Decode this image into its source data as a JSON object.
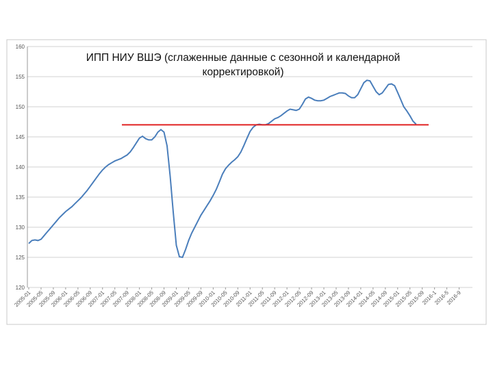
{
  "chart_data": {
    "type": "line",
    "title": "ИПП НИУ ВШЭ (сглаженные данные с сезонной и календарной корректировкой)",
    "categories": [
      "2005-01",
      null,
      null,
      null,
      "2005-05",
      null,
      null,
      null,
      "2005-09",
      null,
      null,
      null,
      "2006-01",
      null,
      null,
      null,
      "2006-05",
      null,
      null,
      null,
      "2006-09",
      null,
      null,
      null,
      "2007-01",
      null,
      null,
      null,
      "2007-05",
      null,
      null,
      null,
      "2007-09",
      null,
      null,
      null,
      "2008-01",
      null,
      null,
      null,
      "2008-05",
      null,
      null,
      null,
      "2008-09",
      null,
      null,
      null,
      "2009-01",
      null,
      null,
      null,
      "2009-05",
      null,
      null,
      null,
      "2009-09",
      null,
      null,
      null,
      "2010-01",
      null,
      null,
      null,
      "2010-05",
      null,
      null,
      null,
      "2010-09",
      null,
      null,
      null,
      "2011-01",
      null,
      null,
      null,
      "2011-05",
      null,
      null,
      null,
      "2011-09",
      null,
      null,
      null,
      "2012-01",
      null,
      null,
      null,
      "2012-05",
      null,
      null,
      null,
      "2012-09",
      null,
      null,
      null,
      "2013-01",
      null,
      null,
      null,
      "2013-05",
      null,
      null,
      null,
      "2013-09",
      null,
      null,
      null,
      "2014-01",
      null,
      null,
      null,
      "2014-05",
      null,
      null,
      null,
      "2014-09",
      null,
      null,
      null,
      "2015-01",
      null,
      null,
      null,
      "2015-05",
      null,
      null,
      null,
      "2015-09",
      null,
      null,
      null,
      "2016-1",
      null,
      null,
      null,
      "2016-5",
      null,
      null,
      null,
      "2016-9",
      null,
      null,
      null
    ],
    "series": [
      {
        "name": "ИПП",
        "color": "#4a7ebb",
        "values": [
          127.3,
          127.8,
          127.9,
          127.8,
          128.0,
          128.6,
          129.2,
          129.8,
          130.4,
          131.0,
          131.6,
          132.1,
          132.6,
          133.0,
          133.4,
          133.9,
          134.4,
          134.9,
          135.5,
          136.1,
          136.8,
          137.5,
          138.2,
          138.9,
          139.5,
          140.0,
          140.4,
          140.7,
          141.0,
          141.2,
          141.4,
          141.7,
          142.0,
          142.5,
          143.2,
          144.0,
          144.8,
          145.1,
          144.7,
          144.5,
          144.5,
          145.0,
          145.8,
          146.2,
          145.8,
          143.5,
          138.5,
          132.5,
          127.0,
          125.1,
          125.0,
          126.3,
          127.8,
          129.0,
          130.0,
          131.0,
          132.0,
          132.8,
          133.6,
          134.4,
          135.3,
          136.3,
          137.5,
          138.8,
          139.7,
          140.3,
          140.8,
          141.2,
          141.7,
          142.5,
          143.6,
          144.8,
          145.9,
          146.6,
          147.0,
          147.1,
          147.0,
          147.0,
          147.2,
          147.6,
          148.0,
          148.2,
          148.5,
          148.9,
          149.3,
          149.6,
          149.5,
          149.4,
          149.6,
          150.4,
          151.3,
          151.6,
          151.4,
          151.1,
          151.0,
          151.0,
          151.1,
          151.4,
          151.7,
          151.9,
          152.1,
          152.3,
          152.3,
          152.2,
          151.8,
          151.5,
          151.5,
          152.0,
          153.0,
          154.0,
          154.4,
          154.3,
          153.4,
          152.5,
          152.0,
          152.3,
          153.0,
          153.7,
          153.8,
          153.5,
          152.4,
          151.2,
          150.0,
          149.3,
          148.5,
          147.6,
          147.1,
          null,
          null,
          null,
          null,
          null,
          null,
          null,
          null,
          null,
          null,
          null,
          null,
          null,
          null,
          null,
          null,
          null
        ]
      }
    ],
    "reference_line": {
      "value": 147,
      "color": "#e02020"
    },
    "ylim": [
      120,
      160
    ],
    "yticks": [
      120,
      125,
      130,
      135,
      140,
      145,
      150,
      155,
      160
    ],
    "grid": true
  }
}
